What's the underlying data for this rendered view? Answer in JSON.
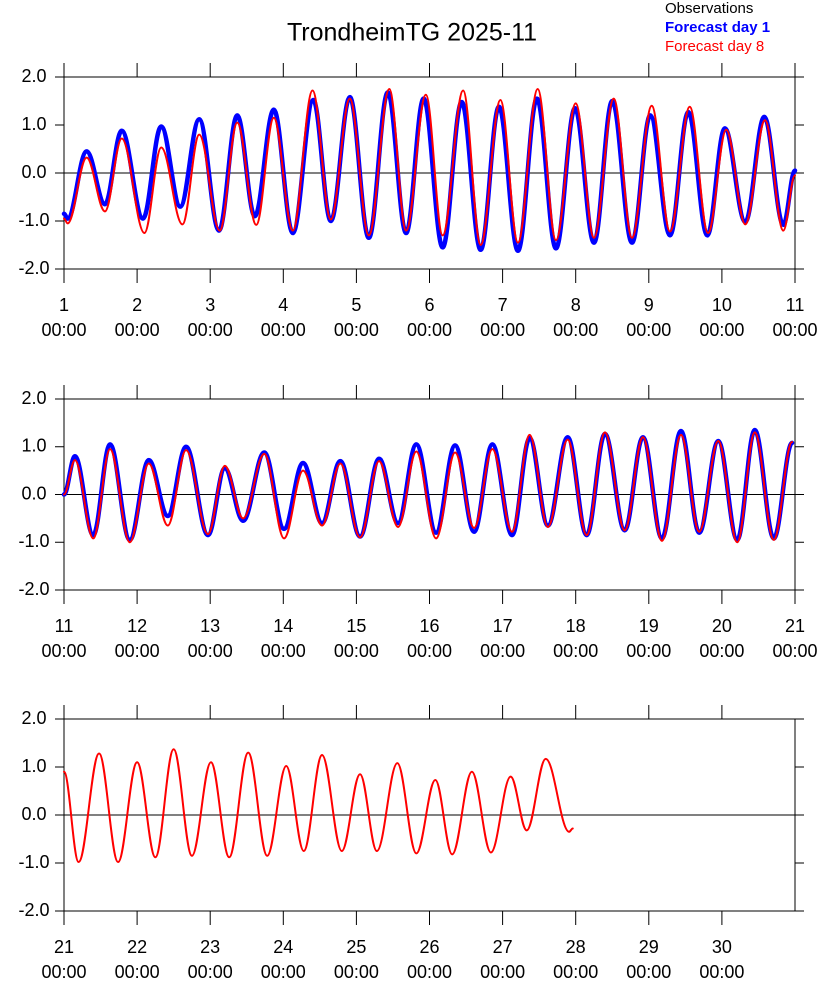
{
  "chart_data": [
    {
      "type": "line",
      "title": "TrondheimTG 2025-11",
      "xlim": [
        1,
        11
      ],
      "ylim": [
        -2,
        2
      ],
      "zero_line": true,
      "xticks": [
        {
          "value": 1,
          "label": [
            "1",
            "00:00"
          ]
        },
        {
          "value": 2,
          "label": [
            "2",
            "00:00"
          ]
        },
        {
          "value": 3,
          "label": [
            "3",
            "00:00"
          ]
        },
        {
          "value": 4,
          "label": [
            "4",
            "00:00"
          ]
        },
        {
          "value": 5,
          "label": [
            "5",
            "00:00"
          ]
        },
        {
          "value": 6,
          "label": [
            "6",
            "00:00"
          ]
        },
        {
          "value": 7,
          "label": [
            "7",
            "00:00"
          ]
        },
        {
          "value": 8,
          "label": [
            "8",
            "00:00"
          ]
        },
        {
          "value": 9,
          "label": [
            "9",
            "00:00"
          ]
        },
        {
          "value": 10,
          "label": [
            "10",
            "00:00"
          ]
        },
        {
          "value": 11,
          "label": [
            "11",
            "00:00"
          ]
        }
      ],
      "yticks": [
        {
          "value": 2,
          "label": "2.0"
        },
        {
          "value": 1,
          "label": "1.0"
        },
        {
          "value": 0,
          "label": "0.0"
        },
        {
          "value": -1,
          "label": "-1.0"
        },
        {
          "value": -2,
          "label": "-2.0"
        }
      ],
      "series": [
        {
          "name": "Observations",
          "color": "#000000",
          "width": 2,
          "x": [],
          "values": []
        },
        {
          "name": "Forecast day 1",
          "color": "#0000ff",
          "width": 4.5,
          "x": [
            1.0,
            1.05,
            1.31,
            1.56,
            1.79,
            2.08,
            2.33,
            2.59,
            2.85,
            3.12,
            3.37,
            3.61,
            3.87,
            4.13,
            4.41,
            4.65,
            4.91,
            5.17,
            5.43,
            5.68,
            5.92,
            6.18,
            6.44,
            6.7,
            6.95,
            7.21,
            7.47,
            7.73,
            7.99,
            8.25,
            8.5,
            8.77,
            9.02,
            9.29,
            9.54,
            9.8,
            10.04,
            10.32,
            10.58,
            10.84,
            11.0
          ],
          "values": [
            -0.85,
            -0.95,
            0.45,
            -0.65,
            0.88,
            -0.95,
            0.97,
            -0.7,
            1.12,
            -1.2,
            1.2,
            -0.9,
            1.32,
            -1.25,
            1.52,
            -1.0,
            1.58,
            -1.35,
            1.68,
            -1.25,
            1.55,
            -1.55,
            1.48,
            -1.6,
            1.38,
            -1.62,
            1.55,
            -1.57,
            1.35,
            -1.45,
            1.5,
            -1.45,
            1.2,
            -1.3,
            1.27,
            -1.3,
            0.93,
            -1.02,
            1.17,
            -1.08,
            0.05
          ]
        },
        {
          "name": "Forecast day 8",
          "color": "#ff0000",
          "width": 2,
          "x": [
            1.0,
            1.05,
            1.31,
            1.56,
            1.79,
            2.1,
            2.33,
            2.62,
            2.85,
            3.13,
            3.37,
            3.63,
            3.87,
            4.13,
            4.4,
            4.65,
            4.91,
            5.17,
            5.45,
            5.68,
            5.95,
            6.18,
            6.46,
            6.7,
            6.97,
            7.21,
            7.48,
            7.73,
            8.0,
            8.25,
            8.52,
            8.77,
            9.04,
            9.29,
            9.56,
            9.81,
            10.06,
            10.32,
            10.59,
            10.84,
            11.0
          ],
          "values": [
            -0.95,
            -1.05,
            0.32,
            -0.8,
            0.72,
            -1.25,
            0.53,
            -1.07,
            0.8,
            -1.2,
            1.05,
            -1.08,
            1.15,
            -1.2,
            1.72,
            -0.97,
            1.55,
            -1.3,
            1.75,
            -1.2,
            1.63,
            -1.3,
            1.72,
            -1.5,
            1.52,
            -1.45,
            1.75,
            -1.4,
            1.45,
            -1.35,
            1.55,
            -1.35,
            1.4,
            -1.22,
            1.38,
            -1.25,
            0.9,
            -1.07,
            1.1,
            -1.2,
            -0.05
          ]
        }
      ]
    },
    {
      "type": "line",
      "xlim": [
        11,
        21
      ],
      "ylim": [
        -2,
        2
      ],
      "zero_line": true,
      "xticks": [
        {
          "value": 11,
          "label": [
            "11",
            "00:00"
          ]
        },
        {
          "value": 12,
          "label": [
            "12",
            "00:00"
          ]
        },
        {
          "value": 13,
          "label": [
            "13",
            "00:00"
          ]
        },
        {
          "value": 14,
          "label": [
            "14",
            "00:00"
          ]
        },
        {
          "value": 15,
          "label": [
            "15",
            "00:00"
          ]
        },
        {
          "value": 16,
          "label": [
            "16",
            "00:00"
          ]
        },
        {
          "value": 17,
          "label": [
            "17",
            "00:00"
          ]
        },
        {
          "value": 18,
          "label": [
            "18",
            "00:00"
          ]
        },
        {
          "value": 19,
          "label": [
            "19",
            "00:00"
          ]
        },
        {
          "value": 20,
          "label": [
            "20",
            "00:00"
          ]
        },
        {
          "value": 21,
          "label": [
            "21",
            "00:00"
          ]
        }
      ],
      "yticks": [
        {
          "value": 2,
          "label": "2.0"
        },
        {
          "value": 1,
          "label": "1.0"
        },
        {
          "value": 0,
          "label": "0.0"
        },
        {
          "value": -1,
          "label": "-1.0"
        },
        {
          "value": -2,
          "label": "-2.0"
        }
      ],
      "series": [
        {
          "name": "Forecast day 1",
          "color": "#0000ff",
          "width": 4.5,
          "x": [
            11.0,
            11.15,
            11.4,
            11.63,
            11.9,
            12.16,
            12.42,
            12.67,
            12.97,
            13.2,
            13.45,
            13.74,
            14.01,
            14.27,
            14.53,
            14.78,
            15.05,
            15.31,
            15.57,
            15.82,
            16.09,
            16.35,
            16.61,
            16.86,
            17.13,
            17.37,
            17.62,
            17.89,
            18.15,
            18.4,
            18.67,
            18.92,
            19.18,
            19.44,
            19.69,
            19.95,
            20.21,
            20.45,
            20.71,
            20.96
          ],
          "values": [
            0.0,
            0.8,
            -0.85,
            1.05,
            -0.95,
            0.72,
            -0.45,
            1.0,
            -0.85,
            0.55,
            -0.55,
            0.88,
            -0.72,
            0.66,
            -0.6,
            0.7,
            -0.88,
            0.75,
            -0.6,
            1.05,
            -0.8,
            1.03,
            -0.78,
            1.05,
            -0.85,
            1.18,
            -0.65,
            1.2,
            -0.85,
            1.27,
            -0.75,
            1.2,
            -0.92,
            1.33,
            -0.8,
            1.12,
            -0.95,
            1.35,
            -0.92,
            1.08
          ]
        },
        {
          "name": "Forecast day 8",
          "color": "#ff0000",
          "width": 2,
          "x": [
            11.0,
            11.15,
            11.4,
            11.63,
            11.9,
            12.16,
            12.42,
            12.67,
            12.97,
            13.2,
            13.45,
            13.74,
            14.01,
            14.27,
            14.53,
            14.78,
            15.05,
            15.31,
            15.57,
            15.82,
            16.09,
            16.35,
            16.61,
            16.86,
            17.13,
            17.37,
            17.62,
            17.89,
            18.15,
            18.4,
            18.67,
            18.92,
            19.18,
            19.44,
            19.69,
            19.95,
            20.21,
            20.45,
            20.71,
            20.96
          ],
          "values": [
            0.0,
            0.72,
            -0.92,
            0.95,
            -1.0,
            0.65,
            -0.65,
            0.93,
            -0.83,
            0.6,
            -0.5,
            0.85,
            -0.92,
            0.5,
            -0.65,
            0.65,
            -0.9,
            0.7,
            -0.68,
            0.9,
            -0.92,
            0.88,
            -0.7,
            0.95,
            -0.78,
            1.25,
            -0.68,
            1.15,
            -0.85,
            1.3,
            -0.75,
            1.2,
            -0.97,
            1.25,
            -0.78,
            1.12,
            -1.0,
            1.3,
            -0.95,
            1.1
          ]
        }
      ]
    },
    {
      "type": "line",
      "xlim": [
        21,
        31
      ],
      "ylim": [
        -2,
        2
      ],
      "zero_line": true,
      "xticks": [
        {
          "value": 21,
          "label": [
            "21",
            "00:00"
          ]
        },
        {
          "value": 22,
          "label": [
            "22",
            "00:00"
          ]
        },
        {
          "value": 23,
          "label": [
            "23",
            "00:00"
          ]
        },
        {
          "value": 24,
          "label": [
            "24",
            "00:00"
          ]
        },
        {
          "value": 25,
          "label": [
            "25",
            "00:00"
          ]
        },
        {
          "value": 26,
          "label": [
            "26",
            "00:00"
          ]
        },
        {
          "value": 27,
          "label": [
            "27",
            "00:00"
          ]
        },
        {
          "value": 28,
          "label": [
            "28",
            "00:00"
          ]
        },
        {
          "value": 29,
          "label": [
            "29",
            "00:00"
          ]
        },
        {
          "value": 30,
          "label": [
            "30",
            "00:00"
          ]
        }
      ],
      "yticks": [
        {
          "value": 2,
          "label": "2.0"
        },
        {
          "value": 1,
          "label": "1.0"
        },
        {
          "value": 0,
          "label": "0.0"
        },
        {
          "value": -1,
          "label": "-1.0"
        },
        {
          "value": -2,
          "label": "-2.0"
        }
      ],
      "series": [
        {
          "name": "Forecast day 8",
          "color": "#ff0000",
          "width": 2,
          "x": [
            21.0,
            21.2,
            21.48,
            21.74,
            22.0,
            22.25,
            22.5,
            22.75,
            23.01,
            23.26,
            23.52,
            23.78,
            24.04,
            24.28,
            24.53,
            24.8,
            25.05,
            25.28,
            25.56,
            25.82,
            26.08,
            26.31,
            26.58,
            26.84,
            27.11,
            27.33,
            27.59,
            27.91,
            27.96
          ],
          "values": [
            0.9,
            -0.98,
            1.28,
            -0.98,
            1.1,
            -0.88,
            1.37,
            -0.85,
            1.1,
            -0.88,
            1.3,
            -0.85,
            1.02,
            -0.75,
            1.25,
            -0.75,
            0.85,
            -0.75,
            1.08,
            -0.8,
            0.73,
            -0.82,
            0.9,
            -0.78,
            0.8,
            -0.32,
            1.17,
            -0.35,
            -0.28
          ]
        }
      ]
    }
  ]
}
